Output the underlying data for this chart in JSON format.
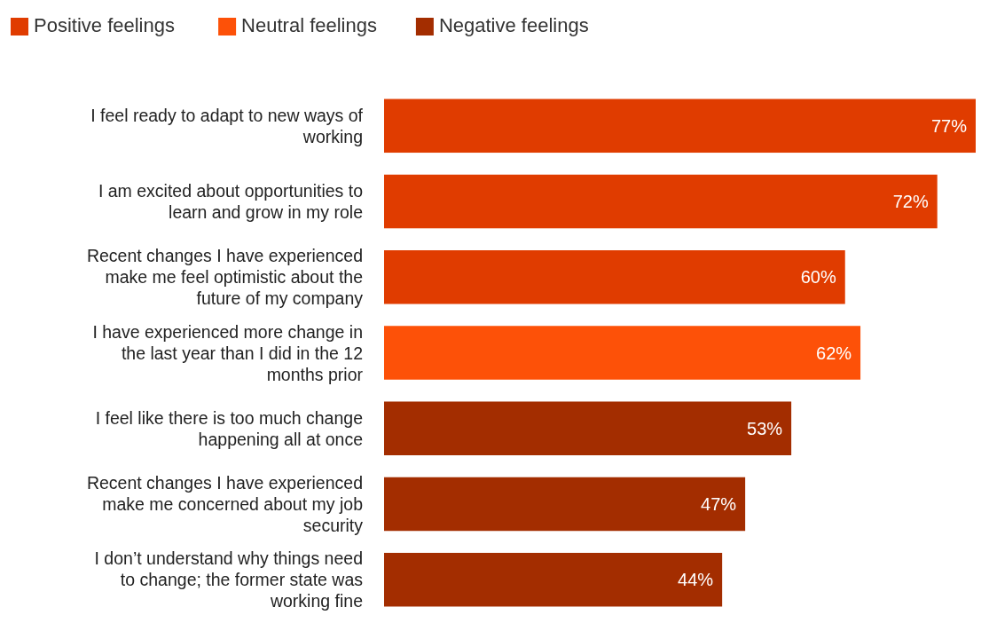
{
  "chart_data": {
    "type": "bar",
    "orientation": "horizontal",
    "legend": "top left",
    "categories": [
      "I feel ready to adapt to new ways of working",
      "I am excited about opportunities to learn and grow in my role",
      "Recent changes I have experienced make me feel optimistic about the future of my company",
      "I have experienced more change in the last year than I did in the 12 months prior",
      "I feel like there is too much change happening all at once",
      "Recent changes I have experienced make me concerned about my job security",
      "I don’t understand why things need to change; the former state was working fine"
    ],
    "series": [
      {
        "name": "Positive feelings",
        "color": "#e03c00",
        "values": [
          77,
          72,
          60,
          null,
          null,
          null,
          null
        ],
        "value_labels": [
          "77%",
          "72%",
          "60%",
          null,
          null,
          null,
          null
        ]
      },
      {
        "name": "Neutral feelings",
        "color": "#fd5108",
        "values": [
          null,
          null,
          null,
          62,
          null,
          null,
          null
        ],
        "value_labels": [
          null,
          null,
          null,
          "62%",
          null,
          null,
          null
        ]
      },
      {
        "name": "Negative feelings",
        "color": "#a32d00",
        "values": [
          null,
          null,
          null,
          null,
          53,
          47,
          44
        ],
        "value_labels": [
          null,
          null,
          null,
          null,
          "53%",
          "47%",
          "44%"
        ]
      }
    ]
  }
}
